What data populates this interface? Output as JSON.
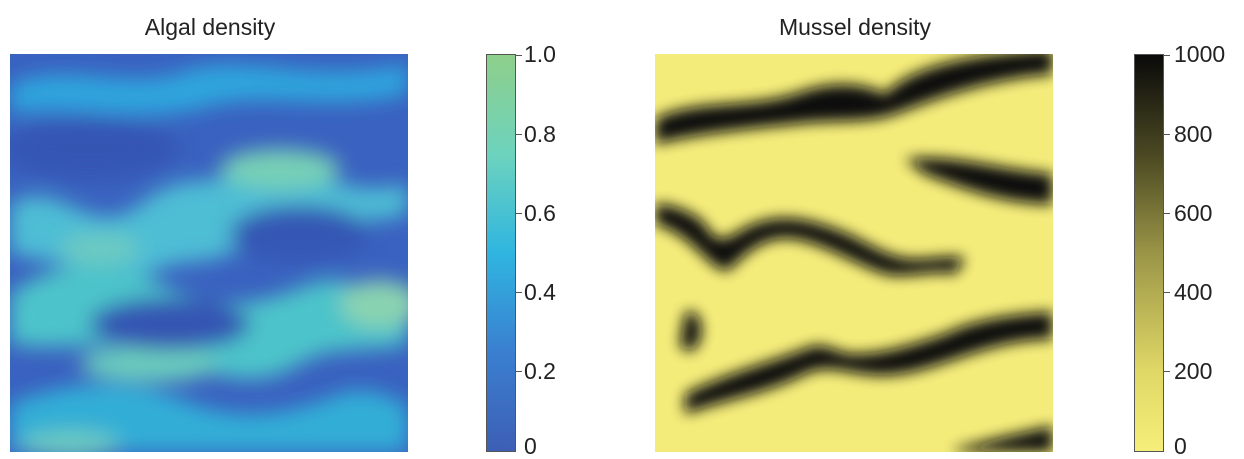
{
  "chart_data": [
    {
      "type": "heatmap",
      "title": "Algal density",
      "colormap": [
        "#3d5fb5",
        "#3a7fd0",
        "#2fb5e0",
        "#6dd3bd",
        "#8ecf8a"
      ],
      "colorbar": {
        "min": 0,
        "max": 1.0,
        "ticks": [
          "0",
          "0.2",
          "0.4",
          "0.6",
          "0.8",
          "1.0"
        ]
      },
      "background_color": "#3a5fbf",
      "pattern": "banded",
      "highlight_color": "#5fc8b8"
    },
    {
      "type": "heatmap",
      "title": "Mussel density",
      "colormap": [
        "#f5ee7a",
        "#e0d866",
        "#9a9547",
        "#4a4822",
        "#0a0a0a"
      ],
      "colorbar": {
        "min": 0,
        "max": 1000,
        "ticks": [
          "0",
          "200",
          "400",
          "600",
          "800",
          "1000"
        ]
      },
      "background_color": "#f4ec7a",
      "pattern": "banded",
      "highlight_color": "#0a0a0a"
    }
  ]
}
